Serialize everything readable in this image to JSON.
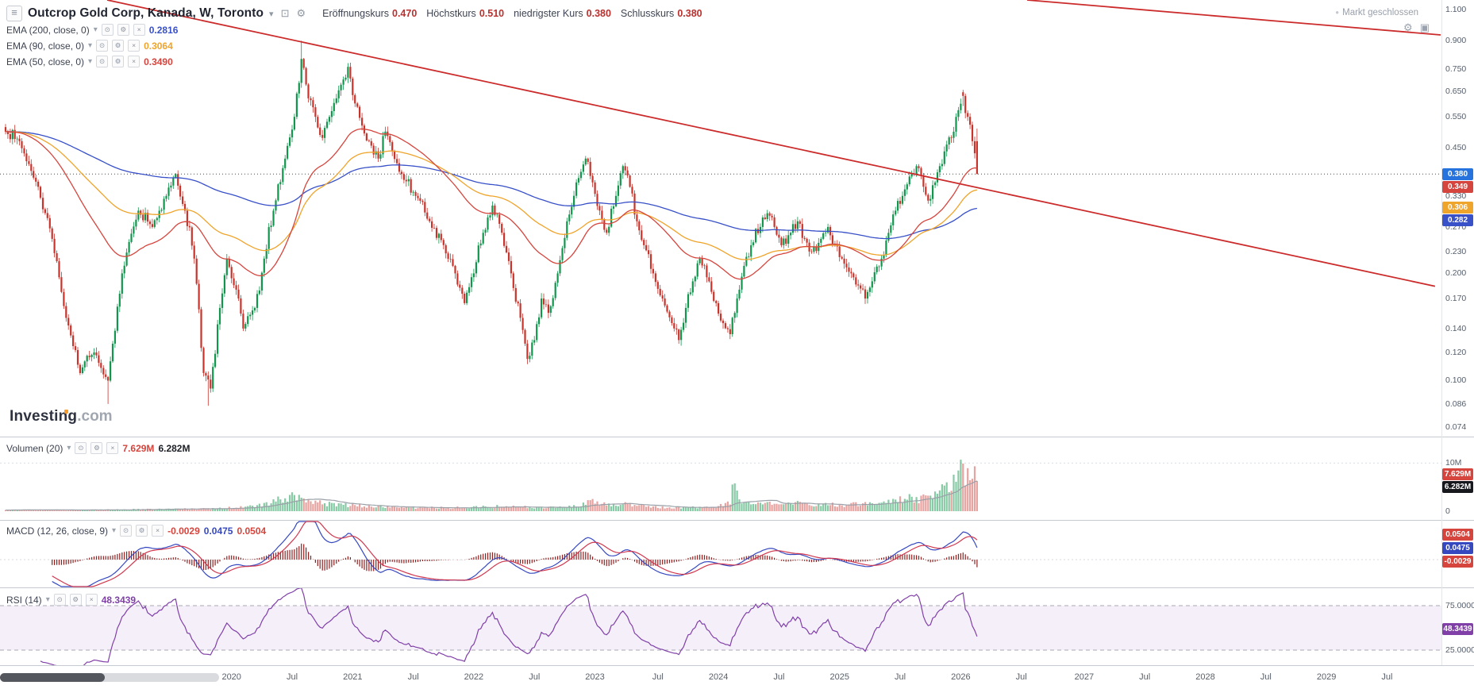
{
  "icons": {
    "menu": "≡",
    "caret_down": "▾",
    "gear": "⚙",
    "camera": "⊡",
    "fullscreen": "▣",
    "eye": "⊙",
    "settings": "⚙",
    "close": "×",
    "dot": "●"
  },
  "header": {
    "title": "Outcrop Gold Corp, Kanada, W, Toronto",
    "market_status": "Markt geschlossen",
    "ohlc": [
      {
        "label": "Eröffnungskurs",
        "value": "0.470"
      },
      {
        "label": "Höchstkurs",
        "value": "0.510"
      },
      {
        "label": "niedrigster Kurs",
        "value": "0.380"
      },
      {
        "label": "Schlusskurs",
        "value": "0.380"
      }
    ]
  },
  "watermark": {
    "brand": "Investing",
    "suffix": ".com"
  },
  "chart_data": {
    "type": "candlestick",
    "symbol": "Outcrop Gold Corp",
    "region": "Kanada",
    "interval": "W",
    "exchange": "Toronto",
    "scale": "log",
    "current_price": 0.38,
    "ohlc_last": {
      "open": 0.47,
      "high": 0.51,
      "low": 0.38,
      "close": 0.38
    },
    "last_week": 417,
    "close_anchors": [
      [
        0,
        0.5
      ],
      [
        6,
        0.47
      ],
      [
        14,
        0.35
      ],
      [
        20,
        0.25
      ],
      [
        26,
        0.15
      ],
      [
        32,
        0.105
      ],
      [
        38,
        0.12
      ],
      [
        44,
        0.1
      ],
      [
        50,
        0.2
      ],
      [
        57,
        0.3
      ],
      [
        63,
        0.27
      ],
      [
        69,
        0.33
      ],
      [
        73,
        0.38
      ],
      [
        77,
        0.3
      ],
      [
        81,
        0.22
      ],
      [
        85,
        0.105
      ],
      [
        88,
        0.095
      ],
      [
        92,
        0.16
      ],
      [
        95,
        0.22
      ],
      [
        99,
        0.18
      ],
      [
        102,
        0.14
      ],
      [
        107,
        0.16
      ],
      [
        111,
        0.22
      ],
      [
        115,
        0.3
      ],
      [
        120,
        0.42
      ],
      [
        124,
        0.55
      ],
      [
        127,
        0.8
      ],
      [
        130,
        0.62
      ],
      [
        133,
        0.55
      ],
      [
        136,
        0.48
      ],
      [
        139,
        0.55
      ],
      [
        142,
        0.62
      ],
      [
        145,
        0.7
      ],
      [
        147,
        0.76
      ],
      [
        150,
        0.6
      ],
      [
        153,
        0.52
      ],
      [
        156,
        0.47
      ],
      [
        160,
        0.42
      ],
      [
        163,
        0.5
      ],
      [
        166,
        0.44
      ],
      [
        170,
        0.38
      ],
      [
        176,
        0.33
      ],
      [
        182,
        0.28
      ],
      [
        188,
        0.24
      ],
      [
        193,
        0.2
      ],
      [
        197,
        0.165
      ],
      [
        201,
        0.2
      ],
      [
        205,
        0.26
      ],
      [
        209,
        0.31
      ],
      [
        213,
        0.26
      ],
      [
        217,
        0.2
      ],
      [
        221,
        0.15
      ],
      [
        224,
        0.115
      ],
      [
        227,
        0.13
      ],
      [
        230,
        0.17
      ],
      [
        233,
        0.155
      ],
      [
        237,
        0.2
      ],
      [
        241,
        0.28
      ],
      [
        245,
        0.36
      ],
      [
        249,
        0.42
      ],
      [
        252,
        0.36
      ],
      [
        255,
        0.3
      ],
      [
        258,
        0.26
      ],
      [
        262,
        0.33
      ],
      [
        265,
        0.4
      ],
      [
        268,
        0.35
      ],
      [
        271,
        0.28
      ],
      [
        274,
        0.24
      ],
      [
        278,
        0.2
      ],
      [
        282,
        0.17
      ],
      [
        286,
        0.145
      ],
      [
        289,
        0.13
      ],
      [
        292,
        0.16
      ],
      [
        295,
        0.19
      ],
      [
        298,
        0.22
      ],
      [
        302,
        0.19
      ],
      [
        305,
        0.165
      ],
      [
        308,
        0.145
      ],
      [
        311,
        0.135
      ],
      [
        314,
        0.17
      ],
      [
        317,
        0.21
      ],
      [
        320,
        0.24
      ],
      [
        324,
        0.27
      ],
      [
        327,
        0.295
      ],
      [
        330,
        0.27
      ],
      [
        333,
        0.24
      ],
      [
        337,
        0.26
      ],
      [
        340,
        0.28
      ],
      [
        343,
        0.25
      ],
      [
        346,
        0.23
      ],
      [
        350,
        0.25
      ],
      [
        353,
        0.27
      ],
      [
        356,
        0.24
      ],
      [
        359,
        0.22
      ],
      [
        363,
        0.2
      ],
      [
        366,
        0.185
      ],
      [
        369,
        0.17
      ],
      [
        372,
        0.19
      ],
      [
        376,
        0.22
      ],
      [
        379,
        0.26
      ],
      [
        382,
        0.3
      ],
      [
        385,
        0.33
      ],
      [
        389,
        0.38
      ],
      [
        391,
        0.4
      ],
      [
        394,
        0.35
      ],
      [
        396,
        0.32
      ],
      [
        399,
        0.36
      ],
      [
        401,
        0.4
      ],
      [
        403,
        0.44
      ],
      [
        406,
        0.48
      ],
      [
        408,
        0.55
      ],
      [
        411,
        0.63
      ],
      [
        413,
        0.55
      ],
      [
        415,
        0.47
      ],
      [
        417,
        0.38
      ]
    ],
    "overrides": {
      "44": {
        "low": 0.086
      },
      "87": {
        "low": 0.085
      },
      "127": {
        "high": 0.9
      },
      "411": {
        "open": 0.645,
        "high": 0.655
      },
      "417": {
        "open": 0.47,
        "high": 0.51,
        "low": 0.38,
        "close": 0.38
      }
    },
    "ema": [
      {
        "period": 200,
        "label": "EMA (200, close, 0)",
        "value": "0.2816",
        "num": 0.2816,
        "color": "#3850c8"
      },
      {
        "period": 90,
        "label": "EMA (90, close, 0)",
        "value": "0.3064",
        "num": 0.3064,
        "color": "#efa42b"
      },
      {
        "period": 50,
        "label": "EMA (50, close, 0)",
        "value": "0.3490",
        "num": 0.349,
        "color": "#d6453d"
      }
    ],
    "price_axis_ticks": [
      {
        "label": "1.100",
        "price": 1.1
      },
      {
        "label": "0.900",
        "price": 0.9
      },
      {
        "label": "0.750",
        "price": 0.75
      },
      {
        "label": "0.650",
        "price": 0.65
      },
      {
        "label": "0.550",
        "price": 0.55
      },
      {
        "label": "0.450",
        "price": 0.45
      },
      {
        "label": "0.330",
        "price": 0.33
      },
      {
        "label": "0.270",
        "price": 0.27
      },
      {
        "label": "0.230",
        "price": 0.23
      },
      {
        "label": "0.200",
        "price": 0.2
      },
      {
        "label": "0.170",
        "price": 0.17
      },
      {
        "label": "0.140",
        "price": 0.14
      },
      {
        "label": "0.120",
        "price": 0.12
      },
      {
        "label": "0.100",
        "price": 0.1
      },
      {
        "label": "0.086",
        "price": 0.086
      },
      {
        "label": "0.074",
        "price": 0.074
      }
    ],
    "price_badges": [
      {
        "text": "0.380",
        "price": 0.38,
        "color": "#2673de"
      },
      {
        "text": "0.349",
        "price": 0.349,
        "color": "#d6453d"
      },
      {
        "text": "0.306",
        "price": 0.306,
        "color": "#efa42b"
      },
      {
        "text": "0.282",
        "price": 0.282,
        "color": "#3850c8"
      }
    ],
    "volume": {
      "label": "Volumen (20)",
      "ma_text": "7.629M",
      "last_text": "6.282M",
      "ma_m": 7.629,
      "last_m": 6.282,
      "axis_ticks": [
        {
          "label": "10M",
          "m": 10
        },
        {
          "label": "0",
          "m": 0
        }
      ],
      "badges": [
        {
          "text": "7.629M",
          "m": 7.629,
          "color": "#d6453d"
        },
        {
          "text": "6.282M",
          "m": 6.282,
          "color": "#16181d"
        }
      ],
      "anchors_m": [
        [
          0,
          0.3
        ],
        [
          30,
          0.25
        ],
        [
          60,
          0.4
        ],
        [
          90,
          0.5
        ],
        [
          110,
          1.2
        ],
        [
          115,
          2.0
        ],
        [
          120,
          2.8
        ],
        [
          124,
          3.3
        ],
        [
          127,
          3.0
        ],
        [
          132,
          2.0
        ],
        [
          140,
          1.4
        ],
        [
          150,
          1.2
        ],
        [
          160,
          1.0
        ],
        [
          170,
          0.8
        ],
        [
          185,
          0.7
        ],
        [
          200,
          0.8
        ],
        [
          210,
          1.0
        ],
        [
          220,
          0.9
        ],
        [
          230,
          0.7
        ],
        [
          240,
          0.9
        ],
        [
          249,
          1.6
        ],
        [
          253,
          2.2
        ],
        [
          258,
          1.2
        ],
        [
          265,
          1.5
        ],
        [
          275,
          0.9
        ],
        [
          285,
          0.7
        ],
        [
          295,
          0.8
        ],
        [
          305,
          0.9
        ],
        [
          311,
          2.0
        ],
        [
          313,
          7.0
        ],
        [
          315,
          2.5
        ],
        [
          320,
          1.3
        ],
        [
          327,
          1.8
        ],
        [
          333,
          1.2
        ],
        [
          340,
          1.6
        ],
        [
          346,
          1.1
        ],
        [
          353,
          1.4
        ],
        [
          360,
          1.2
        ],
        [
          366,
          1.5
        ],
        [
          369,
          1.8
        ],
        [
          372,
          1.3
        ],
        [
          376,
          1.6
        ],
        [
          380,
          2.0
        ],
        [
          385,
          2.5
        ],
        [
          389,
          3.0
        ],
        [
          392,
          2.2
        ],
        [
          396,
          3.0
        ],
        [
          400,
          4.0
        ],
        [
          403,
          4.5
        ],
        [
          406,
          5.5
        ],
        [
          408,
          6.5
        ],
        [
          410,
          8.0
        ],
        [
          411,
          12.4
        ],
        [
          412,
          8.0
        ],
        [
          413,
          7.0
        ],
        [
          414,
          6.5
        ],
        [
          415,
          7.0
        ],
        [
          416,
          8.5
        ],
        [
          417,
          6.282
        ]
      ]
    },
    "macd": {
      "label": "MACD (12, 26, close, 9)",
      "params": {
        "fast": 12,
        "slow": 26,
        "source": "close",
        "signal": 9
      },
      "hist_text": "-0.0029",
      "macd_text": "0.0475",
      "signal_text": "0.0504",
      "hist": -0.0029,
      "macd": 0.0475,
      "signal": 0.0504,
      "badges": [
        {
          "text": "0.0504",
          "color": "#d6453d"
        },
        {
          "text": "0.0475",
          "color": "#3548c0"
        },
        {
          "text": "-0.0029",
          "color": "#d6453d"
        }
      ]
    },
    "rsi": {
      "label": "RSI (14)",
      "period": 14,
      "value": 48.3439,
      "value_text": "48.3439",
      "upper": 75,
      "lower": 25,
      "upper_label": "75.0000",
      "lower_label": "25.0000",
      "badge": {
        "text": "48.3439",
        "value": 48.3439,
        "color": "#8040a8"
      }
    },
    "trendlines": [
      {
        "w1": 43.6,
        "p1": 1.171,
        "w2": 613.6,
        "p2": 0.184,
        "color": "#cc2b2b"
      },
      {
        "w1": 438.5,
        "p1": 1.171,
        "w2": 616.0,
        "p2": 0.934,
        "color": "#cc2b2b"
      }
    ],
    "time_axis_ticks": [
      {
        "label": "2020",
        "week": 97
      },
      {
        "label": "Jul",
        "week": 123
      },
      {
        "label": "2021",
        "week": 149
      },
      {
        "label": "Jul",
        "week": 175
      },
      {
        "label": "2022",
        "week": 201
      },
      {
        "label": "Jul",
        "week": 227
      },
      {
        "label": "2023",
        "week": 253
      },
      {
        "label": "Jul",
        "week": 280
      },
      {
        "label": "2024",
        "week": 306
      },
      {
        "label": "Jul",
        "week": 332
      },
      {
        "label": "2025",
        "week": 358
      },
      {
        "label": "Jul",
        "week": 384
      },
      {
        "label": "2026",
        "week": 410
      },
      {
        "label": "Jul",
        "week": 436
      },
      {
        "label": "2027",
        "week": 463
      },
      {
        "label": "Jul",
        "week": 489
      },
      {
        "label": "2028",
        "week": 515
      },
      {
        "label": "Jul",
        "week": 541
      },
      {
        "label": "2029",
        "week": 567
      },
      {
        "label": "Jul",
        "week": 593
      }
    ],
    "colors": {
      "up": "#12954d",
      "down": "#c8342c",
      "vol_up": "rgba(18,149,77,0.5)",
      "vol_down": "rgba(200,52,44,0.45)",
      "macd_line": "#3548c0",
      "macd_signal": "#d0384f",
      "macd_hist": "#8e2020",
      "rsi_line": "#8040a8",
      "rsi_band": "rgba(150,100,200,0.10)",
      "trend": "#cc2b2b",
      "current_price_line": "#4a4a4a"
    }
  }
}
